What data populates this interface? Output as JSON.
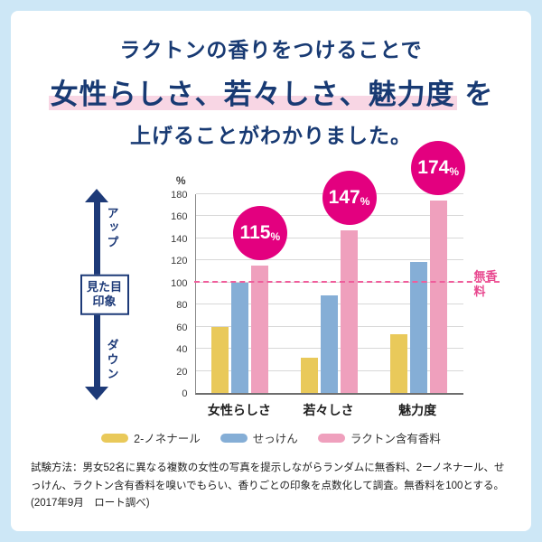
{
  "title": {
    "line1": "ラクトンの香りをつけることで",
    "line2_highlight": "女性らしさ、若々しさ、魅力度",
    "line2_suffix": " を",
    "line3": "上げることがわかりました。"
  },
  "axis_widget": {
    "up_label": "アップ",
    "down_label": "ダウン",
    "box_line1": "見た目",
    "box_line2": "印象"
  },
  "chart_data": {
    "type": "bar",
    "unit_label": "%",
    "categories": [
      "女性らしさ",
      "若々しさ",
      "魅力度"
    ],
    "series": [
      {
        "name": "2-ノネナール",
        "color": "#e9c95a",
        "values": [
          60,
          32,
          53
        ]
      },
      {
        "name": "せっけん",
        "color": "#85aed6",
        "values": [
          100,
          88,
          119
        ]
      },
      {
        "name": "ラクトン含有香料",
        "color": "#efa0bd",
        "values": [
          115,
          147,
          174
        ]
      }
    ],
    "badges": [
      {
        "value": "115",
        "unit": "%"
      },
      {
        "value": "147",
        "unit": "%"
      },
      {
        "value": "174",
        "unit": "%"
      }
    ],
    "badge_color": "#e3007f",
    "ylim": [
      0,
      180
    ],
    "ytick_step": 20,
    "grid": true,
    "legend_position": "bottom",
    "baseline": {
      "value": 100,
      "label": "無香料",
      "color": "#e8488f"
    }
  },
  "legend": {
    "items": [
      {
        "label": "2-ノネナール",
        "color": "#e9c95a"
      },
      {
        "label": "せっけん",
        "color": "#85aed6"
      },
      {
        "label": "ラクトン含有香料",
        "color": "#efa0bd"
      }
    ]
  },
  "footnote": "試験方法：男女52名に異なる複数の女性の写真を提示しながらランダムに無香料、2ーノネナール、せっけん、ラクトン含有香料を嗅いでもらい、香りごとの印象を点数化して調査。無香料を100とする。(2017年9月　ロート調べ)"
}
